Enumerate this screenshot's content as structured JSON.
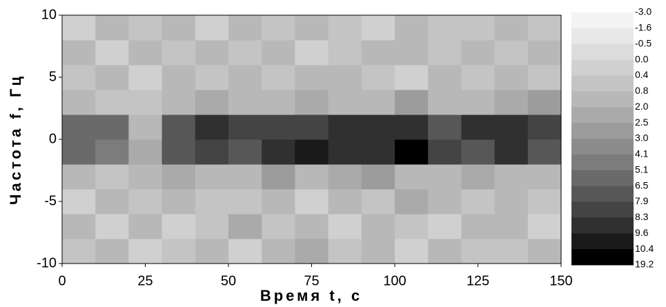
{
  "chart_data": {
    "type": "contour",
    "xlabel": "Время t, с",
    "ylabel": "Частота f, Гц",
    "xlim": [
      0,
      150
    ],
    "ylim": [
      -10,
      10
    ],
    "xticks": [
      0,
      25,
      50,
      75,
      100,
      125,
      150
    ],
    "yticks": [
      -10,
      -5,
      0,
      5,
      10
    ],
    "x": [
      5,
      15,
      25,
      35,
      45,
      55,
      65,
      75,
      85,
      95,
      105,
      115,
      125,
      135,
      145
    ],
    "y": [
      -9,
      -7,
      -5,
      -3,
      -1,
      1,
      3,
      5,
      7,
      9
    ],
    "z": [
      [
        0.4,
        0.8,
        0.0,
        0.6,
        1.2,
        0.3,
        0.8,
        2.1,
        0.5,
        0.9,
        0.2,
        1.5,
        0.7,
        0.4,
        1.0
      ],
      [
        0.9,
        0.3,
        1.4,
        0.2,
        0.7,
        2.2,
        0.5,
        0.9,
        0.3,
        1.1,
        0.6,
        0.2,
        1.8,
        0.8,
        0.3
      ],
      [
        0.2,
        1.1,
        0.6,
        0.9,
        0.4,
        0.7,
        1.6,
        0.3,
        0.8,
        0.5,
        2.3,
        0.9,
        0.4,
        1.2,
        0.6
      ],
      [
        1.3,
        0.6,
        0.9,
        2.1,
        1.5,
        0.8,
        2.6,
        1.2,
        2.2,
        2.8,
        1.4,
        0.9,
        2.0,
        1.1,
        1.6
      ],
      [
        5.5,
        4.5,
        2.1,
        6.8,
        8.0,
        7.2,
        8.5,
        9.8,
        8.4,
        9.0,
        10.5,
        8.1,
        6.9,
        8.3,
        7.4
      ],
      [
        6.2,
        5.3,
        1.8,
        7.5,
        8.8,
        7.9,
        8.2,
        8.0,
        9.1,
        8.5,
        8.9,
        7.7,
        8.6,
        9.3,
        8.0
      ],
      [
        1.0,
        0.7,
        0.5,
        1.8,
        2.4,
        1.3,
        0.9,
        2.2,
        1.6,
        1.1,
        2.5,
        1.4,
        0.8,
        2.0,
        2.6
      ],
      [
        0.5,
        1.2,
        0.3,
        0.8,
        0.6,
        1.0,
        0.4,
        0.9,
        1.5,
        0.7,
        0.3,
        1.1,
        0.6,
        0.9,
        0.5
      ],
      [
        0.8,
        0.2,
        1.0,
        0.4,
        1.3,
        0.6,
        0.9,
        0.3,
        0.7,
        1.6,
        0.8,
        0.4,
        1.2,
        0.5,
        0.9
      ],
      [
        0.3,
        0.9,
        0.5,
        1.1,
        0.2,
        0.8,
        0.5,
        1.4,
        0.6,
        0.3,
        0.9,
        0.7,
        0.4,
        1.0,
        0.6
      ]
    ],
    "levels": [
      {
        "value": -3,
        "label": "-3.0"
      },
      -1.6,
      -0.5,
      {
        "value": 0,
        "label": "0.0"
      },
      0.4,
      0.8,
      {
        "value": 2,
        "label": "2.0"
      },
      2.5,
      {
        "value": 3,
        "label": "3.0"
      },
      4.1,
      5.1,
      6.5,
      7.9,
      8.3,
      9.6,
      10.4,
      19.2
    ],
    "colors": [
      "#f4f4f4",
      "#e8e8e8",
      "#dcdcdc",
      "#d0d0d0",
      "#c4c4c4",
      "#b8b8b8",
      "#aaaaaa",
      "#9c9c9c",
      "#8c8c8c",
      "#7c7c7c",
      "#6a6a6a",
      "#575757",
      "#444444",
      "#303030",
      "#1a1a1a",
      "#000000"
    ]
  }
}
